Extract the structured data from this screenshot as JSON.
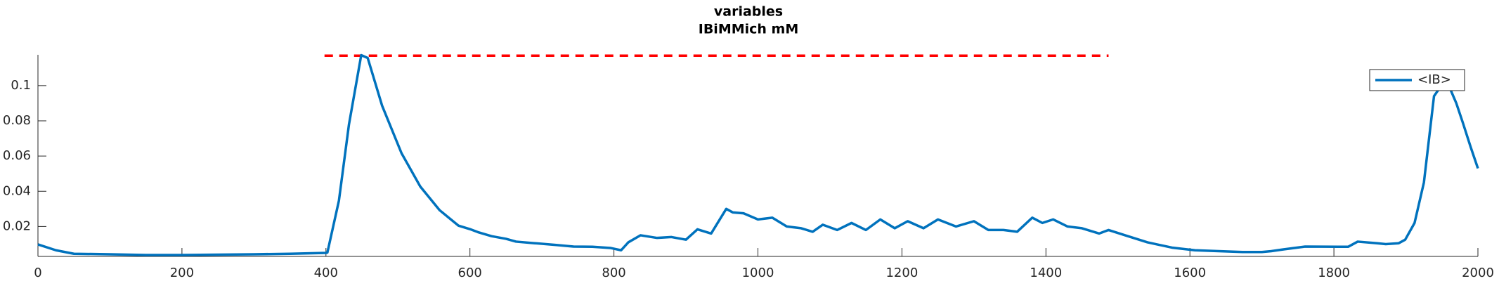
{
  "chart_data": {
    "type": "line",
    "title": "variables",
    "subtitle": "IBiMMich mM",
    "xlim": [
      0,
      2000
    ],
    "xticks": [
      0,
      200,
      400,
      600,
      800,
      1000,
      1200,
      1400,
      1600,
      1800,
      2000
    ],
    "ylim": [
      0.003,
      0.1175
    ],
    "yticks": [
      0.02,
      0.04,
      0.06,
      0.08,
      0.1
    ],
    "grid": false,
    "legend": "upper right",
    "series": [
      {
        "name": "<IB>",
        "color": "#0072bd",
        "x": [
          0,
          25,
          50,
          100,
          150,
          200,
          250,
          300,
          350,
          400,
          402,
          418,
          432,
          449,
          458,
          478,
          505,
          531,
          558,
          584,
          600,
          611,
          630,
          650,
          664,
          690,
          720,
          744,
          770,
          795,
          810,
          820,
          837,
          860,
          880,
          900,
          916,
          935,
          956,
          965,
          980,
          1000,
          1020,
          1040,
          1060,
          1076,
          1090,
          1110,
          1130,
          1150,
          1170,
          1190,
          1208,
          1230,
          1250,
          1275,
          1300,
          1320,
          1341,
          1360,
          1381,
          1395,
          1410,
          1430,
          1450,
          1474,
          1487,
          1510,
          1541,
          1575,
          1607,
          1640,
          1673,
          1700,
          1713,
          1730,
          1760,
          1806,
          1820,
          1833,
          1860,
          1872,
          1890,
          1899,
          1912,
          1925,
          1939,
          1950,
          1959,
          1970,
          1979,
          1990,
          2000
        ],
        "values": [
          0.0098,
          0.0065,
          0.0045,
          0.0042,
          0.0038,
          0.0038,
          0.004,
          0.0042,
          0.0045,
          0.005,
          0.0052,
          0.0346,
          0.078,
          0.1173,
          0.1157,
          0.0886,
          0.0616,
          0.0427,
          0.0292,
          0.0205,
          0.0185,
          0.0168,
          0.0145,
          0.013,
          0.0114,
          0.0105,
          0.0095,
          0.0086,
          0.0085,
          0.0078,
          0.0065,
          0.011,
          0.015,
          0.0135,
          0.014,
          0.0125,
          0.0184,
          0.016,
          0.03,
          0.028,
          0.0275,
          0.024,
          0.025,
          0.02,
          0.019,
          0.017,
          0.021,
          0.018,
          0.022,
          0.018,
          0.024,
          0.019,
          0.023,
          0.019,
          0.024,
          0.02,
          0.023,
          0.018,
          0.018,
          0.017,
          0.025,
          0.022,
          0.024,
          0.02,
          0.019,
          0.016,
          0.018,
          0.015,
          0.011,
          0.008,
          0.0065,
          0.006,
          0.0055,
          0.0055,
          0.006,
          0.007,
          0.0086,
          0.0085,
          0.0085,
          0.0114,
          0.0105,
          0.01,
          0.0105,
          0.0125,
          0.022,
          0.045,
          0.094,
          0.1005,
          0.1005,
          0.09,
          0.079,
          0.065,
          0.053
        ]
      }
    ],
    "reference_line": {
      "value": 0.117,
      "x": [
        398,
        1487
      ],
      "color": "#ff0000"
    }
  }
}
